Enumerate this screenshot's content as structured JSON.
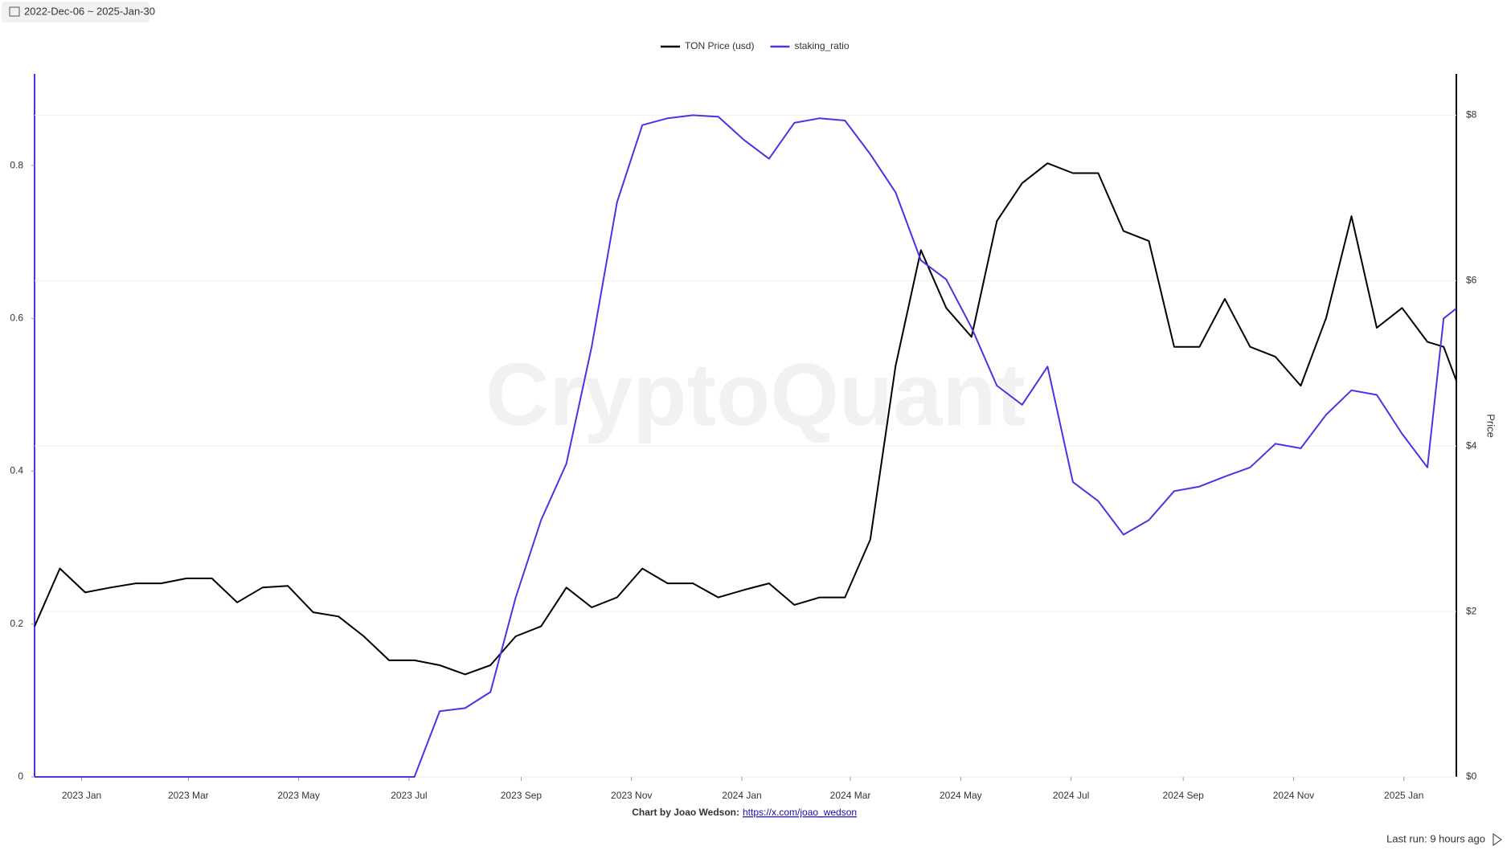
{
  "chart_data": {
    "type": "line",
    "date_range": "2022-Dec-06 ~ 2025-Jan-30",
    "watermark": "CryptoQuant",
    "y2label": "Price",
    "credit": "Chart by Joao Wedson:",
    "credit_link": "https://x.com/joao_wedson",
    "footer_note": "Last run: 9 hours ago",
    "legend": "top",
    "grid": true,
    "x": [
      "2022-12-06",
      "2022-12-20",
      "2023-01-03",
      "2023-01-17",
      "2023-01-31",
      "2023-02-14",
      "2023-02-28",
      "2023-03-14",
      "2023-03-28",
      "2023-04-11",
      "2023-04-25",
      "2023-05-09",
      "2023-05-23",
      "2023-06-06",
      "2023-06-20",
      "2023-07-04",
      "2023-07-18",
      "2023-08-01",
      "2023-08-15",
      "2023-08-29",
      "2023-09-12",
      "2023-09-26",
      "2023-10-10",
      "2023-10-24",
      "2023-11-07",
      "2023-11-21",
      "2023-12-05",
      "2023-12-19",
      "2024-01-02",
      "2024-01-16",
      "2024-01-30",
      "2024-02-13",
      "2024-02-27",
      "2024-03-12",
      "2024-03-26",
      "2024-04-09",
      "2024-04-23",
      "2024-05-07",
      "2024-05-21",
      "2024-06-04",
      "2024-06-18",
      "2024-07-02",
      "2024-07-16",
      "2024-07-30",
      "2024-08-13",
      "2024-08-27",
      "2024-09-10",
      "2024-09-24",
      "2024-10-08",
      "2024-10-22",
      "2024-11-05",
      "2024-11-19",
      "2024-12-03",
      "2024-12-17",
      "2024-12-31",
      "2025-01-14",
      "2025-01-23",
      "2025-01-30"
    ],
    "xlim": [
      "2022-12-06",
      "2025-01-30"
    ],
    "xticks": [
      {
        "value": "2023-01-01",
        "label": "2023 Jan"
      },
      {
        "value": "2023-03-01",
        "label": "2023 Mar"
      },
      {
        "value": "2023-05-01",
        "label": "2023 May"
      },
      {
        "value": "2023-07-01",
        "label": "2023 Jul"
      },
      {
        "value": "2023-09-01",
        "label": "2023 Sep"
      },
      {
        "value": "2023-11-01",
        "label": "2023 Nov"
      },
      {
        "value": "2024-01-01",
        "label": "2024 Jan"
      },
      {
        "value": "2024-03-01",
        "label": "2024 Mar"
      },
      {
        "value": "2024-05-01",
        "label": "2024 May"
      },
      {
        "value": "2024-07-01",
        "label": "2024 Jul"
      },
      {
        "value": "2024-09-01",
        "label": "2024 Sep"
      },
      {
        "value": "2024-11-01",
        "label": "2024 Nov"
      },
      {
        "value": "2025-01-01",
        "label": "2025 Jan"
      }
    ],
    "ylim": [
      0,
      0.92
    ],
    "yticks": [
      0,
      0.2,
      0.4,
      0.6,
      0.8
    ],
    "y2lim": [
      0,
      8.5
    ],
    "y2ticks": [
      {
        "value": 0,
        "label": "$0"
      },
      {
        "value": 2,
        "label": "$2"
      },
      {
        "value": 4,
        "label": "$4"
      },
      {
        "value": 6,
        "label": "$6"
      },
      {
        "value": 8,
        "label": "$8"
      }
    ],
    "series": [
      {
        "name": "TON Price (usd)",
        "color": "#000000",
        "axis": "y2",
        "values": [
          1.82,
          2.52,
          2.23,
          2.29,
          2.34,
          2.34,
          2.4,
          2.4,
          2.11,
          2.29,
          2.31,
          1.99,
          1.94,
          1.7,
          1.41,
          1.41,
          1.35,
          1.24,
          1.35,
          1.7,
          1.82,
          2.29,
          2.05,
          2.17,
          2.52,
          2.34,
          2.34,
          2.17,
          2.26,
          2.34,
          2.08,
          2.17,
          2.17,
          2.87,
          4.97,
          6.37,
          5.67,
          5.32,
          6.72,
          7.18,
          7.42,
          7.3,
          7.3,
          6.6,
          6.48,
          5.2,
          5.2,
          5.78,
          5.2,
          5.08,
          4.73,
          5.55,
          6.78,
          5.43,
          5.67,
          5.26,
          5.2,
          4.79
        ]
      },
      {
        "name": "staking_ratio",
        "color": "#4b32e6",
        "values": [
          0,
          0,
          0,
          0,
          0,
          0,
          0,
          0,
          0,
          0,
          0,
          0,
          0,
          0,
          0,
          0,
          0.086,
          0.09,
          0.111,
          0.235,
          0.336,
          0.41,
          0.563,
          0.752,
          0.853,
          0.862,
          0.866,
          0.864,
          0.834,
          0.809,
          0.856,
          0.862,
          0.859,
          0.815,
          0.765,
          0.676,
          0.651,
          0.588,
          0.512,
          0.487,
          0.537,
          0.386,
          0.361,
          0.317,
          0.336,
          0.374,
          0.38,
          0.393,
          0.405,
          0.436,
          0.43,
          0.474,
          0.506,
          0.5,
          0.449,
          0.405,
          0.6,
          0.613
        ]
      }
    ]
  }
}
